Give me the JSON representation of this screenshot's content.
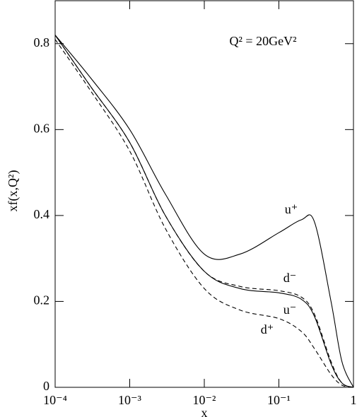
{
  "chart_data": {
    "type": "line",
    "xlabel": "x",
    "ylabel": "xf(x,Q²)",
    "annotation": "Q² = 20GeV²",
    "x": [
      0.0001,
      0.0003,
      0.001,
      0.003,
      0.01,
      0.03,
      0.1,
      0.2,
      0.3,
      0.5,
      0.7,
      1
    ],
    "series": [
      {
        "name": "u⁺",
        "color": "#000000",
        "dash": false,
        "values": [
          0.82,
          0.72,
          0.6,
          0.45,
          0.31,
          0.31,
          0.36,
          0.39,
          0.385,
          0.2,
          0.06,
          0
        ]
      },
      {
        "name": "d⁻",
        "color": "#000000",
        "dash": true,
        "values": [
          0.82,
          0.7,
          0.57,
          0.4,
          0.27,
          0.235,
          0.225,
          0.21,
          0.17,
          0.06,
          0.01,
          0
        ]
      },
      {
        "name": "u⁻",
        "color": "#000000",
        "dash": false,
        "values": [
          0.82,
          0.7,
          0.57,
          0.4,
          0.27,
          0.23,
          0.22,
          0.205,
          0.165,
          0.055,
          0.01,
          0
        ]
      },
      {
        "name": "d⁺",
        "color": "#000000",
        "dash": true,
        "values": [
          0.81,
          0.69,
          0.55,
          0.37,
          0.23,
          0.18,
          0.16,
          0.13,
          0.09,
          0.03,
          0.005,
          0
        ]
      }
    ],
    "xscale": "log",
    "xlim": [
      0.0001,
      1
    ],
    "ylim": [
      0,
      0.9
    ],
    "xticks": [
      {
        "value": 0.0001,
        "label": "10⁻⁴"
      },
      {
        "value": 0.001,
        "label": "10⁻³"
      },
      {
        "value": 0.01,
        "label": "10⁻²"
      },
      {
        "value": 0.1,
        "label": "10⁻¹"
      },
      1
    ],
    "yticks": [
      0,
      0.2,
      0.4,
      0.6,
      0.8
    ]
  }
}
